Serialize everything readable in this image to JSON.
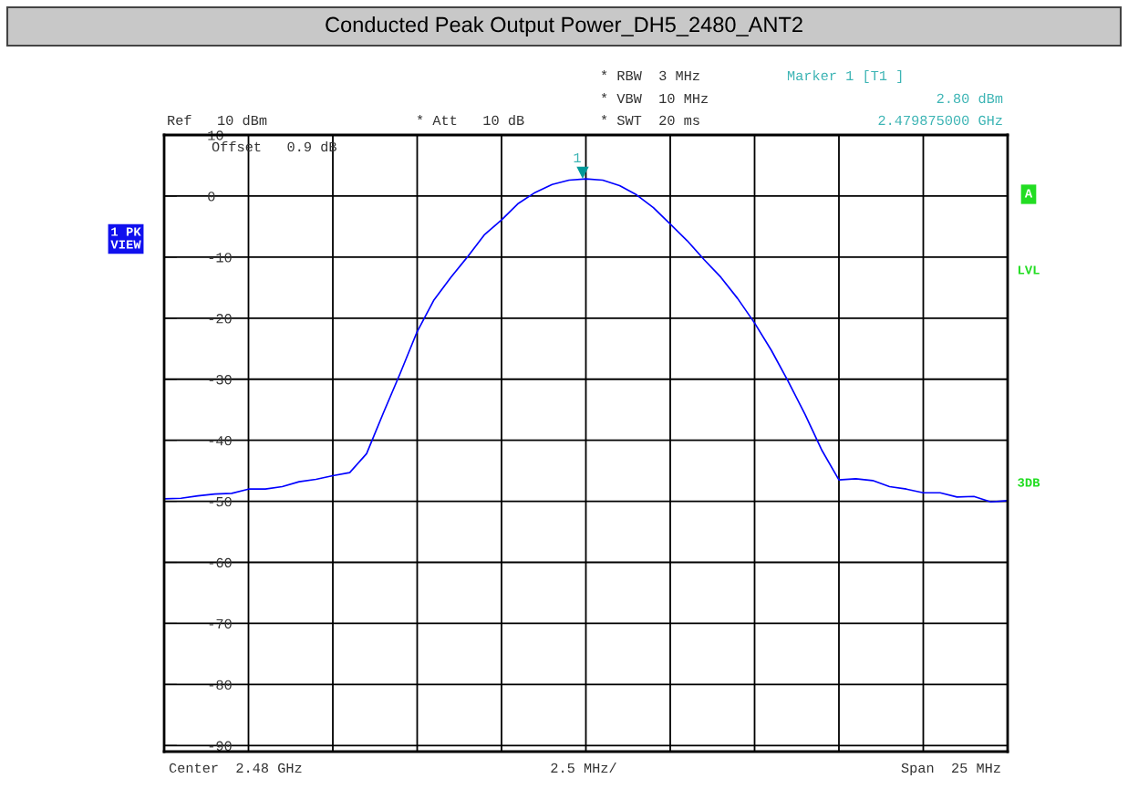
{
  "chart_data": {
    "type": "line",
    "title": "Conducted Peak Output Power_DH5_2480_ANT2",
    "categories": [
      null,
      null,
      null,
      null,
      null,
      null,
      null,
      null,
      null,
      null,
      null,
      null,
      null,
      null,
      null,
      null,
      null,
      null,
      null,
      null,
      null,
      null,
      null,
      null,
      null,
      null,
      null,
      null,
      null,
      null,
      null,
      null,
      null,
      null,
      null,
      null,
      null,
      null,
      null,
      null,
      null,
      null,
      null,
      null,
      null,
      null,
      null,
      null,
      null,
      null,
      null
    ],
    "series": [
      {
        "color": "#0000ff",
        "values": [
          -49.6,
          -49.5,
          -49.1,
          -48.8,
          -48.7,
          -48.0,
          -48.0,
          -47.6,
          -46.8,
          -46.4,
          -45.8,
          -45.3,
          -42.2,
          -35.5,
          -29.0,
          -22.2,
          -17.0,
          -13.3,
          -9.9,
          -6.3,
          -3.9,
          -1.2,
          0.6,
          1.9,
          2.6,
          2.8,
          2.6,
          1.7,
          0.2,
          -1.9,
          -4.6,
          -7.3,
          -10.4,
          -13.3,
          -16.8,
          -20.8,
          -25.3,
          -30.4,
          -35.8,
          -41.7,
          -46.5,
          -46.3,
          -46.6,
          -47.6,
          -48.0,
          -48.6,
          -48.6,
          -49.3,
          -49.2,
          -50.1,
          -49.9
        ]
      }
    ],
    "ylim": [
      -91,
      10
    ],
    "yticks": [
      10,
      0,
      -10,
      -20,
      -30,
      -40,
      -50,
      -60,
      -70,
      -80,
      -90
    ],
    "tick_labels": "y",
    "grid": true,
    "marker": "none",
    "line_style": "solid",
    "annotations": [
      "1",
      "Ref   10 dBm",
      "* Att   10 dB",
      "* RBW  3 MHz",
      "* VBW  10 MHz",
      "* SWT  20 ms",
      "Marker 1 [T1 ]",
      "2.80 dBm",
      "2.479875000 GHz",
      "Offset   0.9 dB",
      "1 PK\nVIEW",
      "A",
      "LVL",
      "3DB",
      "Center  2.48 GHz",
      "2.5 MHz/",
      "Span  25 MHz"
    ]
  }
}
